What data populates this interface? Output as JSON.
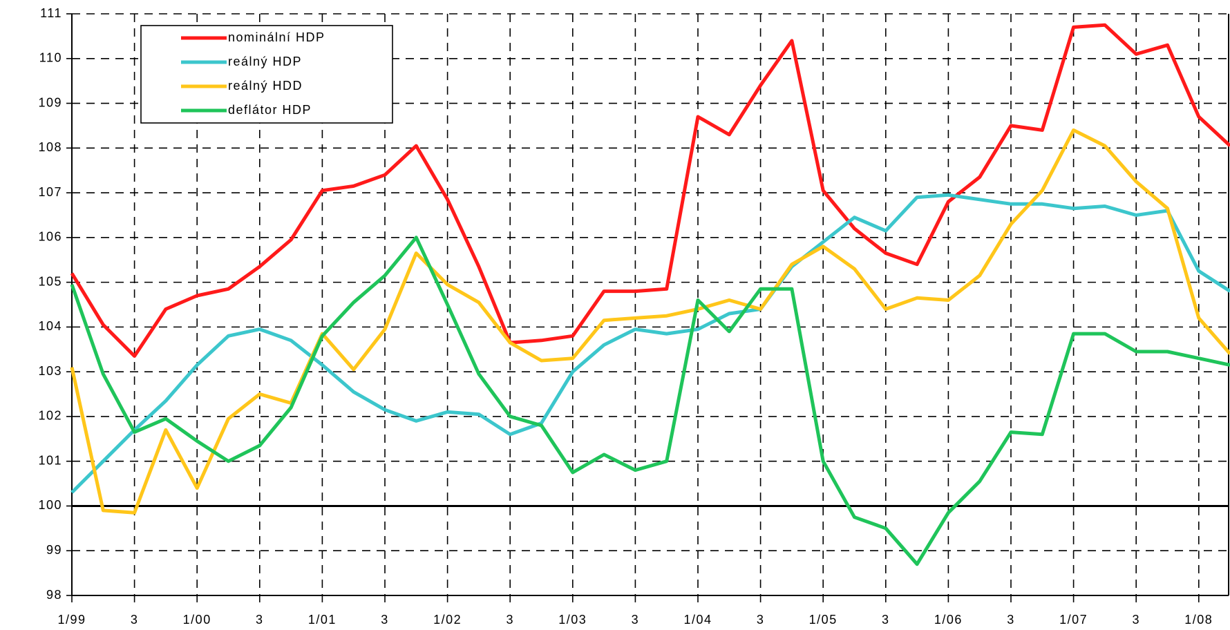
{
  "chart_data": {
    "type": "line",
    "categories": [
      "1/99",
      null,
      "3",
      null,
      "1/00",
      null,
      "3",
      null,
      "1/01",
      null,
      "3",
      null,
      "1/02",
      null,
      "3",
      null,
      "1/03",
      null,
      "3",
      null,
      "1/04",
      null,
      "3",
      null,
      "1/05",
      null,
      "3",
      null,
      "1/06",
      null,
      "3",
      null,
      "1/07",
      null,
      "3",
      null,
      "1/08",
      null
    ],
    "series": [
      {
        "name": "nominální HDP",
        "color": "#ff1a1a",
        "values": [
          105.2,
          104.05,
          103.35,
          104.4,
          104.7,
          104.85,
          105.35,
          105.95,
          107.05,
          107.15,
          107.4,
          108.05,
          106.85,
          105.35,
          103.65,
          103.7,
          103.8,
          104.8,
          104.8,
          104.85,
          108.7,
          108.3,
          109.4,
          110.4,
          107.05,
          106.2,
          105.65,
          105.4,
          106.8,
          107.35,
          108.5,
          108.4,
          110.7,
          110.75,
          110.1,
          110.3,
          108.7,
          108.05
        ]
      },
      {
        "name": "reálný HDP",
        "color": "#3cc6cc",
        "values": [
          100.3,
          101.0,
          101.7,
          102.35,
          103.15,
          103.8,
          103.95,
          103.7,
          103.15,
          102.55,
          102.15,
          101.9,
          102.1,
          102.05,
          101.6,
          101.85,
          103.0,
          103.6,
          103.95,
          103.85,
          103.95,
          104.3,
          104.4,
          105.35,
          105.9,
          106.45,
          106.15,
          106.9,
          106.95,
          106.85,
          106.75,
          106.75,
          106.65,
          106.7,
          106.5,
          106.6,
          105.25,
          104.8
        ]
      },
      {
        "name": "reálný HDD",
        "color": "#ffc61a",
        "values": [
          103.1,
          99.9,
          99.85,
          101.7,
          100.4,
          101.95,
          102.5,
          102.3,
          103.85,
          103.05,
          103.95,
          105.65,
          104.95,
          104.55,
          103.65,
          103.25,
          103.3,
          104.15,
          104.2,
          104.25,
          104.4,
          104.6,
          104.4,
          105.4,
          105.8,
          105.3,
          104.4,
          104.65,
          104.6,
          105.15,
          106.3,
          107.05,
          108.4,
          108.05,
          107.25,
          106.65,
          104.2,
          103.4
        ]
      },
      {
        "name": "deflátor HDP",
        "color": "#1fc45a",
        "values": [
          104.95,
          102.95,
          101.65,
          101.95,
          101.45,
          101.0,
          101.35,
          102.2,
          103.8,
          104.55,
          105.15,
          106.0,
          104.5,
          102.95,
          102.0,
          101.8,
          100.75,
          101.15,
          100.8,
          101.0,
          104.6,
          103.9,
          104.85,
          104.85,
          101.0,
          99.75,
          99.5,
          98.7,
          99.85,
          100.55,
          101.65,
          101.6,
          103.85,
          103.85,
          103.45,
          103.45,
          103.3,
          103.15
        ]
      }
    ],
    "ylim": [
      98,
      111
    ],
    "yticks": [
      98,
      99,
      100,
      101,
      102,
      103,
      104,
      105,
      106,
      107,
      108,
      109,
      110,
      111
    ],
    "reference_line": 100,
    "grid": true,
    "legend": "upper left"
  }
}
